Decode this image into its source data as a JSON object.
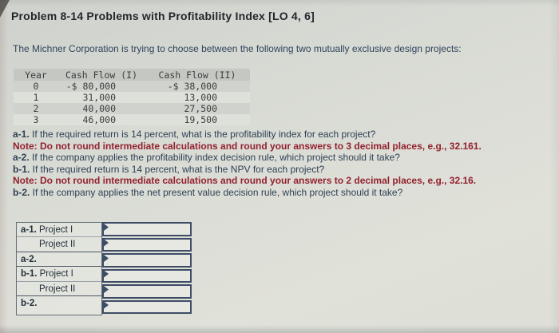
{
  "page": {
    "title": "Problem 8-14 Problems with Profitability Index [LO 4, 6]",
    "intro": "The Michner Corporation is trying to choose between the following two mutually exclusive design projects:"
  },
  "cashflow_table": {
    "headers": [
      "Year",
      "Cash Flow (I)",
      "Cash Flow (II)"
    ],
    "rows": [
      {
        "year": "0",
        "cf1": "-$ 80,000",
        "cf2": "-$ 38,000"
      },
      {
        "year": "1",
        "cf1": "31,000",
        "cf2": "13,000"
      },
      {
        "year": "2",
        "cf1": "40,000",
        "cf2": "27,500"
      },
      {
        "year": "3",
        "cf1": "46,000",
        "cf2": "19,500"
      }
    ]
  },
  "questions": [
    {
      "prefix": "a-1.",
      "text": "If the required return is 14 percent, what is the profitability index for each project?",
      "style": "q"
    },
    {
      "prefix": "Note:",
      "text": "Do not round intermediate calculations and round your answers to 3 decimal places, e.g., 32.161.",
      "style": "note"
    },
    {
      "prefix": "a-2.",
      "text": "If the company applies the profitability index decision rule, which project should it take?",
      "style": "q"
    },
    {
      "prefix": "b-1.",
      "text": "If the required return is 14 percent, what is the NPV for each project?",
      "style": "q"
    },
    {
      "prefix": "Note:",
      "text": "Do not round intermediate calculations and round your answers to 2 decimal places, e.g., 32.16.",
      "style": "note"
    },
    {
      "prefix": "b-2.",
      "text": "If the company applies the net present value decision rule, which project should it take?",
      "style": "q"
    }
  ],
  "answer_table": {
    "rows": [
      {
        "prefix": "a-1.",
        "label": "Project I",
        "indent": false,
        "value": "",
        "group_end": false
      },
      {
        "prefix": "",
        "label": "Project II",
        "indent": true,
        "value": "",
        "group_end": true
      },
      {
        "prefix": "a-2.",
        "label": "",
        "indent": false,
        "value": "",
        "group_end": true
      },
      {
        "prefix": "b-1.",
        "label": "Project I",
        "indent": false,
        "value": "",
        "group_end": false
      },
      {
        "prefix": "",
        "label": "Project II",
        "indent": true,
        "value": "",
        "group_end": true
      },
      {
        "prefix": "b-2.",
        "label": "",
        "indent": false,
        "value": "",
        "group_end": false
      }
    ]
  },
  "colors": {
    "title_text": "#23262b",
    "body_text": "#2e4154",
    "note_text": "#93212e",
    "table_header_bg": "#c5c7c2",
    "input_border": "#3e4d66"
  }
}
